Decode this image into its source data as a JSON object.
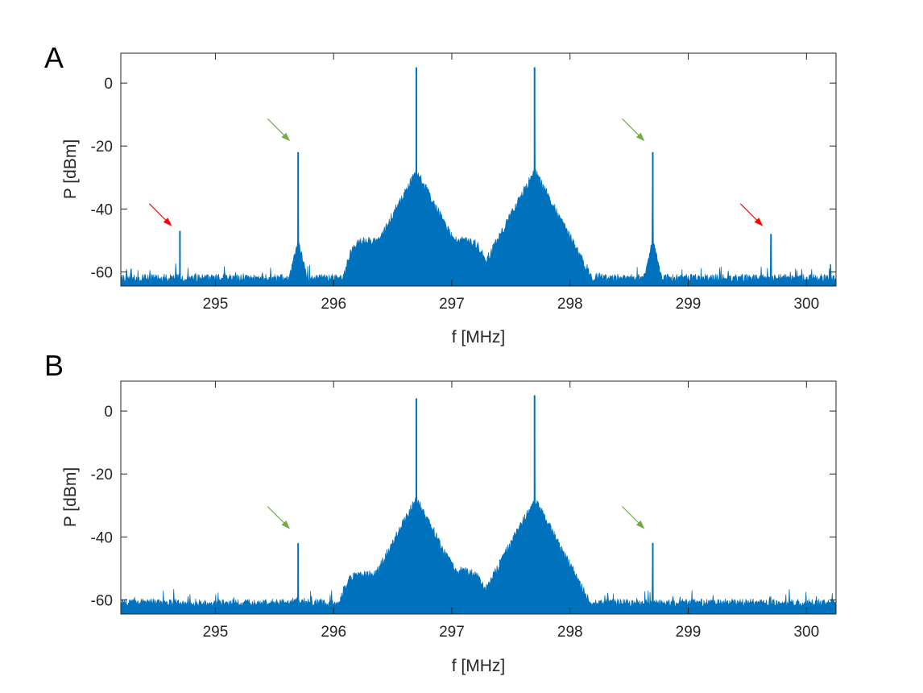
{
  "chart_data": [
    {
      "type": "line",
      "panel_label": "A",
      "xlabel": "f [MHz]",
      "ylabel": "P [dBm]",
      "xlim": [
        294.2,
        300.25
      ],
      "ylim": [
        -64.5,
        9.5
      ],
      "xticks": [
        295,
        296,
        297,
        298,
        299,
        300
      ],
      "yticks": [
        -60,
        -40,
        -20,
        0
      ],
      "grid": false,
      "color": "#0072BD",
      "noise_floor": -62,
      "peaks": [
        {
          "x": 294.7,
          "y": -47
        },
        {
          "x": 295.7,
          "y": -22
        },
        {
          "x": 296.7,
          "y": 5
        },
        {
          "x": 297.7,
          "y": 5
        },
        {
          "x": 298.7,
          "y": -22
        },
        {
          "x": 299.7,
          "y": -48
        }
      ],
      "broad_bumps": [
        {
          "x": 296.35,
          "y": -50
        },
        {
          "x": 297.05,
          "y": -50
        }
      ],
      "annotations": [
        {
          "type": "arrow",
          "color": "#FF0000",
          "target_x": 294.7,
          "target_y": -46
        },
        {
          "type": "arrow",
          "color": "#70AD47",
          "target_x": 295.7,
          "target_y": -19
        },
        {
          "type": "arrow",
          "color": "#70AD47",
          "target_x": 298.7,
          "target_y": -19
        },
        {
          "type": "arrow",
          "color": "#FF0000",
          "target_x": 299.7,
          "target_y": -46
        }
      ]
    },
    {
      "type": "line",
      "panel_label": "B",
      "xlabel": "f [MHz]",
      "ylabel": "P [dBm]",
      "xlim": [
        294.2,
        300.25
      ],
      "ylim": [
        -64.5,
        9.5
      ],
      "xticks": [
        295,
        296,
        297,
        298,
        299,
        300
      ],
      "yticks": [
        -60,
        -40,
        -20,
        0
      ],
      "grid": false,
      "color": "#0072BD",
      "noise_floor": -61,
      "peaks": [
        {
          "x": 295.7,
          "y": -42
        },
        {
          "x": 296.7,
          "y": 4
        },
        {
          "x": 297.7,
          "y": 5
        },
        {
          "x": 298.7,
          "y": -42
        }
      ],
      "broad_bumps": [
        {
          "x": 296.3,
          "y": -52
        },
        {
          "x": 297.05,
          "y": -51
        }
      ],
      "annotations": [
        {
          "type": "arrow",
          "color": "#70AD47",
          "target_x": 295.7,
          "target_y": -38
        },
        {
          "type": "arrow",
          "color": "#70AD47",
          "target_x": 298.7,
          "target_y": -38
        }
      ]
    }
  ]
}
